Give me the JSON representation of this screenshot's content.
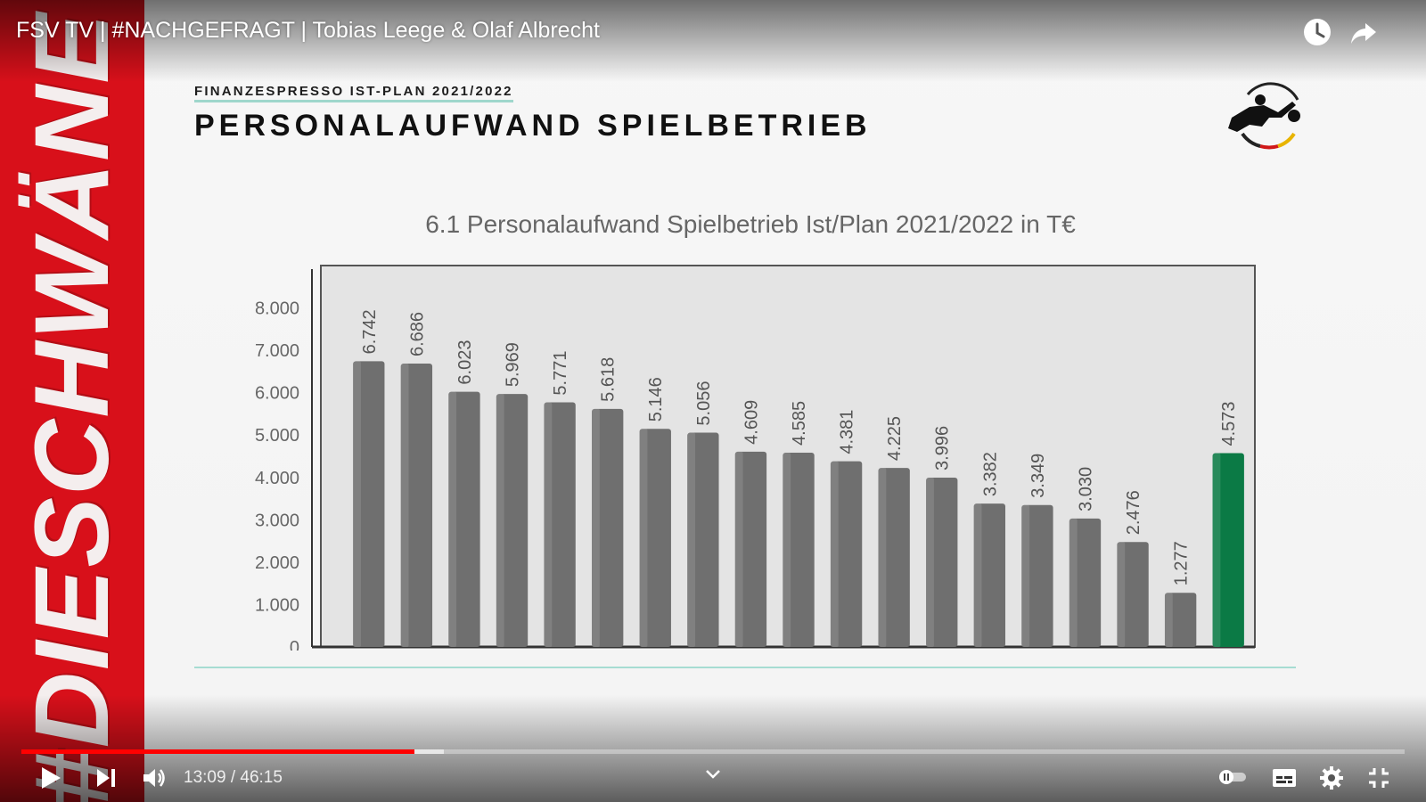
{
  "video": {
    "title": "FSV TV | #NACHGEFRAGT | Tobias Leege & Olaf Albrecht",
    "time_current": "13:09",
    "time_total": "46:15",
    "time_display": "13:09 / 46:15",
    "progress": 0.2843,
    "buffered": 0.3055
  },
  "banner": {
    "text": "#DIESCHWÄNE",
    "color": "#d8101a"
  },
  "slide": {
    "kicker": "FINANZESPRESSO IST-PLAN 2021/2022",
    "title": "PERSONALAUFWAND SPIELBETRIEB",
    "logo_icon": "dfl-logo"
  },
  "chart_data": {
    "type": "bar",
    "title": "6.1 Personalaufwand Spielbetrieb Ist/Plan 2021/2022 in T€",
    "values": [
      6742,
      6686,
      6023,
      5969,
      5771,
      5618,
      5146,
      5056,
      4609,
      4585,
      4381,
      4225,
      3996,
      3382,
      3349,
      3030,
      2476,
      1277,
      4573
    ],
    "value_labels": [
      "6.742",
      "6.686",
      "6.023",
      "5.969",
      "5.771",
      "5.618",
      "5.146",
      "5.056",
      "4.609",
      "4.585",
      "4.381",
      "4.225",
      "3.996",
      "3.382",
      "3.349",
      "3.030",
      "2.476",
      "1.277",
      "4.573"
    ],
    "y_ticks": [
      0,
      1000,
      2000,
      3000,
      4000,
      5000,
      6000,
      7000,
      8000
    ],
    "y_tick_labels": [
      "0",
      "1.000",
      "2.000",
      "3.000",
      "4.000",
      "5.000",
      "6.000",
      "7.000",
      "8.000"
    ],
    "ylim": [
      0,
      9000
    ],
    "bar_color": "#6f6f6f",
    "highlight_color": "#0b7a45",
    "highlight_index": 18,
    "grid": false
  },
  "controls": {
    "play_icon": "play-icon",
    "next_icon": "next-icon",
    "volume_icon": "volume-icon",
    "chapter_icon": "chevron-down-icon",
    "autoplay_icon": "autoplay-toggle-icon",
    "subtitles_icon": "subtitles-icon",
    "settings_icon": "gear-icon",
    "fullscreen_icon": "exit-fullscreen-icon",
    "watch_later_icon": "clock-icon",
    "share_icon": "share-icon"
  }
}
